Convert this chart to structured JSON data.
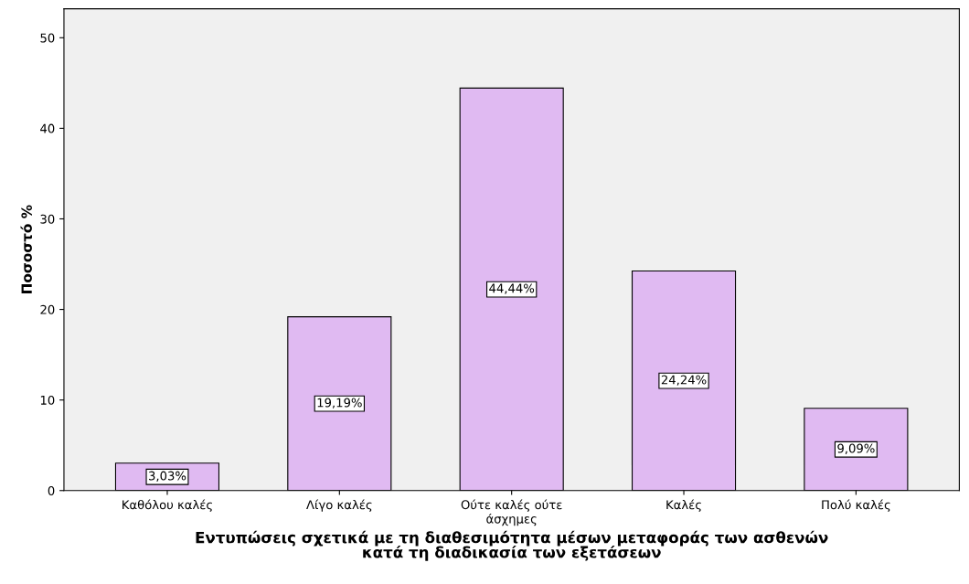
{
  "chart_data": {
    "type": "bar",
    "xlabel": "Εντυπώσεις σχετικά με τη διαθεσιμότητα μέσων μεταφοράς των ασθενών\nκατά τη διαδικασία των εξετάσεων",
    "ylabel": "Ποσοστό %",
    "categories": [
      "Καθόλου καλές",
      "Λίγο καλές",
      "Ούτε καλές ούτε\nάσχημες",
      "Καλές",
      "Πολύ καλές"
    ],
    "values": [
      3.03,
      19.19,
      44.44,
      24.24,
      9.09
    ],
    "value_labels": [
      "3,03%",
      "19,19%",
      "44,44%",
      "24,24%",
      "9,09%"
    ],
    "color": "#e0baf2",
    "ylim": [
      0,
      53.2
    ],
    "yticks": [
      0,
      10,
      20,
      30,
      40,
      50
    ],
    "grid": false
  }
}
